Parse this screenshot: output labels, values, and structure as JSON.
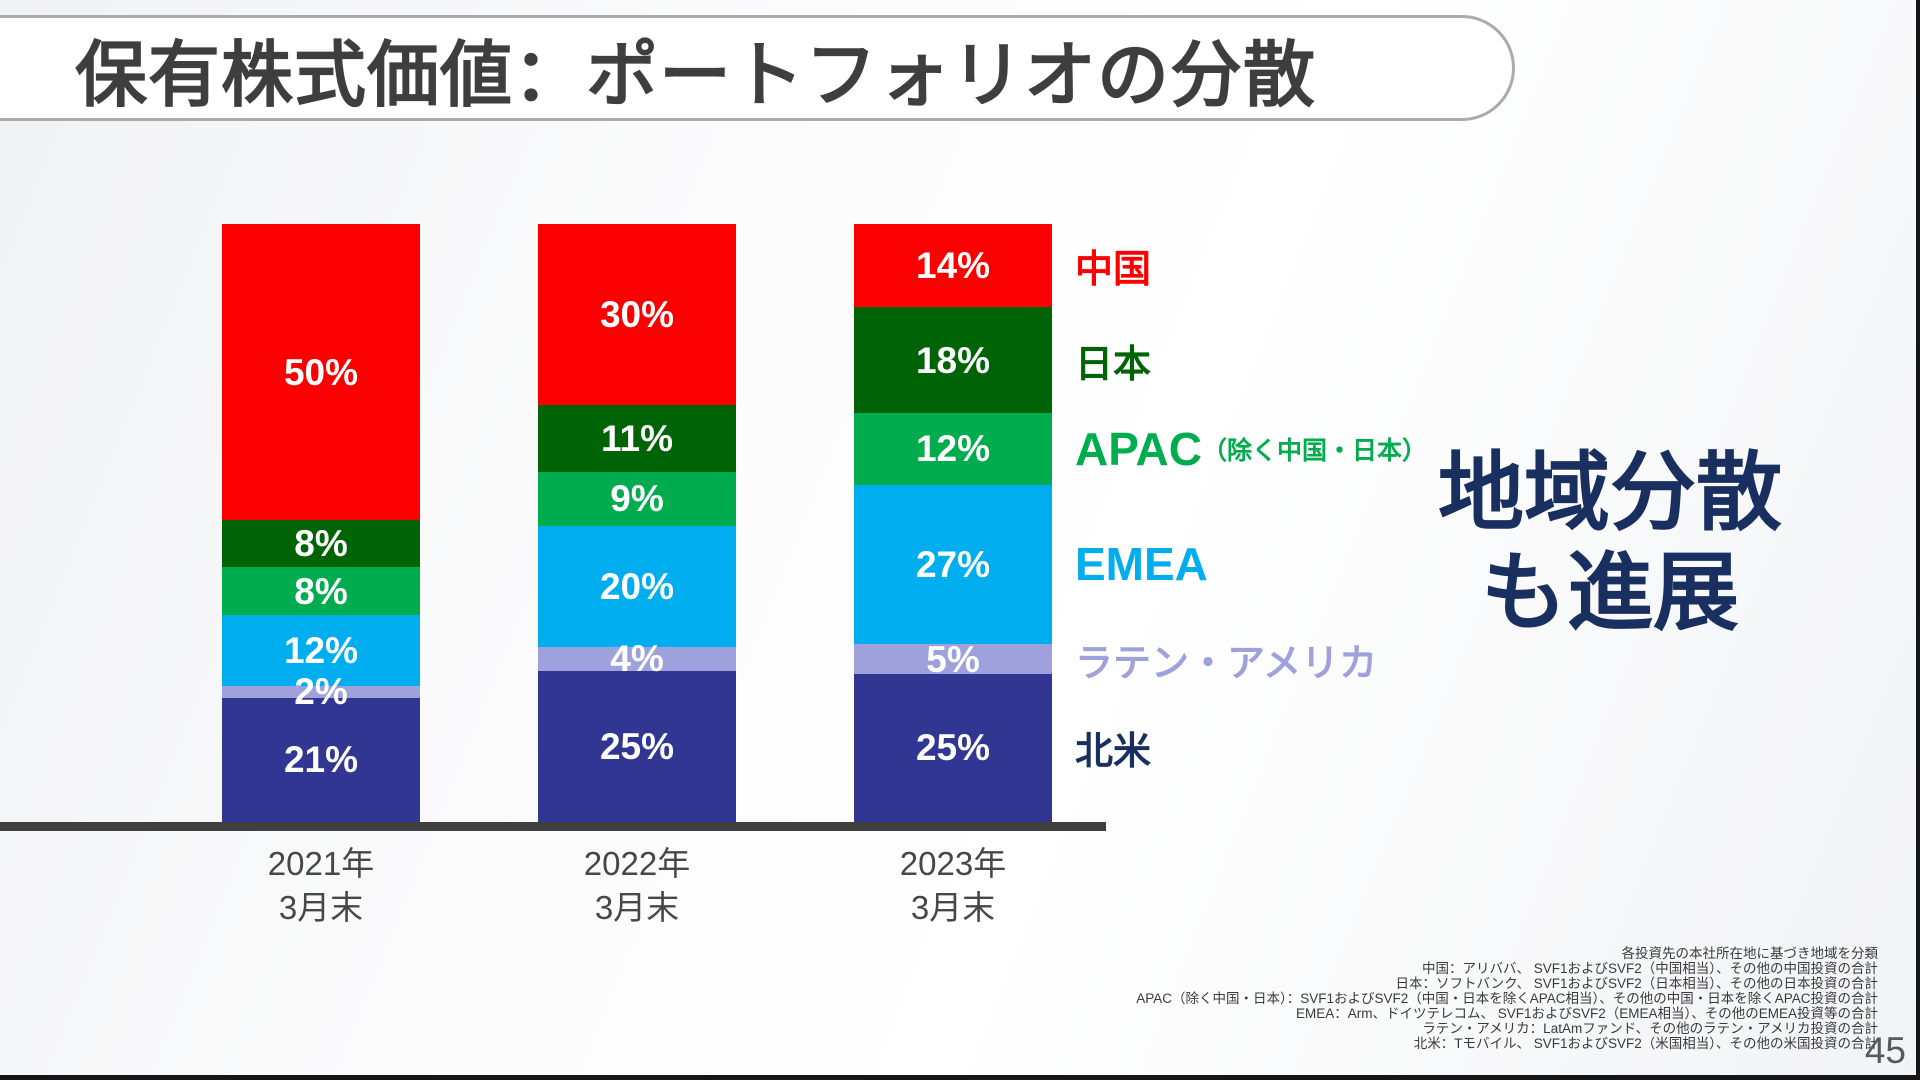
{
  "slide": {
    "title": "保有株式価値：ポートフォリオの分散",
    "headline_line1": "地域分散",
    "headline_line2": "も進展",
    "page_number": "45"
  },
  "colors": {
    "headline": "#182F5F",
    "title_text": "#3E3E3E",
    "title_border": "#ABABAB",
    "axis": "#3F3F3F",
    "x_label": "#474747",
    "footnote": "#3A3A3A",
    "page_number": "#58595B",
    "value_label": "#FFFFFF"
  },
  "chart_data": {
    "type": "bar",
    "stacked": true,
    "percent_of_total": true,
    "unit": "%",
    "ylim": [
      0,
      100
    ],
    "grid": false,
    "legend_position": "right",
    "value_labels": "inside",
    "categories": [
      "2021年\n3月末",
      "2022年\n3月末",
      "2023年\n3月末"
    ],
    "series": [
      {
        "name": "中国",
        "sublabel": "",
        "color": "#FA0000",
        "values": [
          50,
          30,
          14
        ]
      },
      {
        "name": "日本",
        "sublabel": "",
        "color": "#006407",
        "values": [
          8,
          11,
          18
        ]
      },
      {
        "name": "APAC",
        "sublabel": "（除く中国・日本）",
        "color": "#00AC4E",
        "values": [
          8,
          9,
          12
        ]
      },
      {
        "name": "EMEA",
        "sublabel": "",
        "color": "#00ADEE",
        "values": [
          12,
          20,
          27
        ]
      },
      {
        "name": "ラテン・アメリカ",
        "sublabel": "",
        "color": "#9FA1DC",
        "values": [
          2,
          4,
          5
        ]
      },
      {
        "name": "北米",
        "sublabel": "",
        "color": "#303692",
        "legend_color": "#182F5F",
        "values": [
          21,
          25,
          25
        ]
      }
    ]
  },
  "footnotes": [
    "各投資先の本社所在地に基づき地域を分類",
    "中国：アリババ、 SVF1およびSVF2（中国相当）、その他の中国投資の合計",
    "日本：ソフトバンク、 SVF1およびSVF2（日本相当）、その他の日本投資の合計",
    "APAC（除く中国・日本）：SVF1およびSVF2（中国・日本を除くAPAC相当）、その他の中国・日本を除くAPAC投資の合計",
    "EMEA：Arm、ドイツテレコム、 SVF1およびSVF2（EMEA相当）、その他のEMEA投資等の合計",
    "ラテン・アメリカ：LatAmファンド、その他のラテン・アメリカ投資の合計",
    "北米：Tモバイル、 SVF1およびSVF2（米国相当）、その他の米国投資の合計"
  ]
}
